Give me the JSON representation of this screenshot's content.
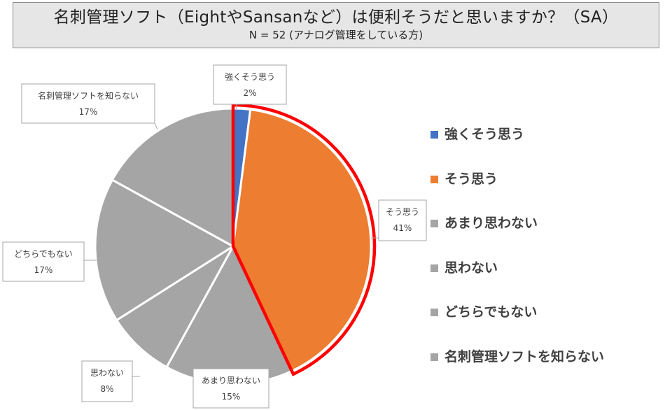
{
  "title": "名刺管理ソフト（EightやSansanなど）は便利そうだと思いますか？（SA）",
  "subtitle": "N = 52 (アナログ管理をしている方)",
  "chart_data": {
    "type": "pie",
    "start_angle_deg": 0,
    "direction": "clockwise",
    "slices": [
      {
        "label": "強くそう思う",
        "value": 2,
        "display": "2%",
        "color": "#4472c4"
      },
      {
        "label": "そう思う",
        "value": 41,
        "display": "41%",
        "color": "#ed7d31"
      },
      {
        "label": "あまり思わない",
        "value": 15,
        "display": "15%",
        "color": "#a5a5a5"
      },
      {
        "label": "思わない",
        "value": 8,
        "display": "8%",
        "color": "#a5a5a5"
      },
      {
        "label": "どちらでもない",
        "value": 17,
        "display": "17%",
        "color": "#a5a5a5"
      },
      {
        "label": "名刺管理ソフトを知らない",
        "value": 17,
        "display": "17%",
        "color": "#a5a5a5"
      }
    ],
    "highlight": {
      "slices": [
        0,
        1
      ],
      "color": "#ff0000"
    },
    "legend_position": "right"
  },
  "legend": [
    {
      "label": "強くそう思う",
      "color": "#4472c4"
    },
    {
      "label": "そう思う",
      "color": "#ed7d31"
    },
    {
      "label": "あまり思わない",
      "color": "#a5a5a5"
    },
    {
      "label": "思わない",
      "color": "#a5a5a5"
    },
    {
      "label": "どちらでもない",
      "color": "#a5a5a5"
    },
    {
      "label": "名刺管理ソフトを知らない",
      "color": "#a5a5a5"
    }
  ]
}
